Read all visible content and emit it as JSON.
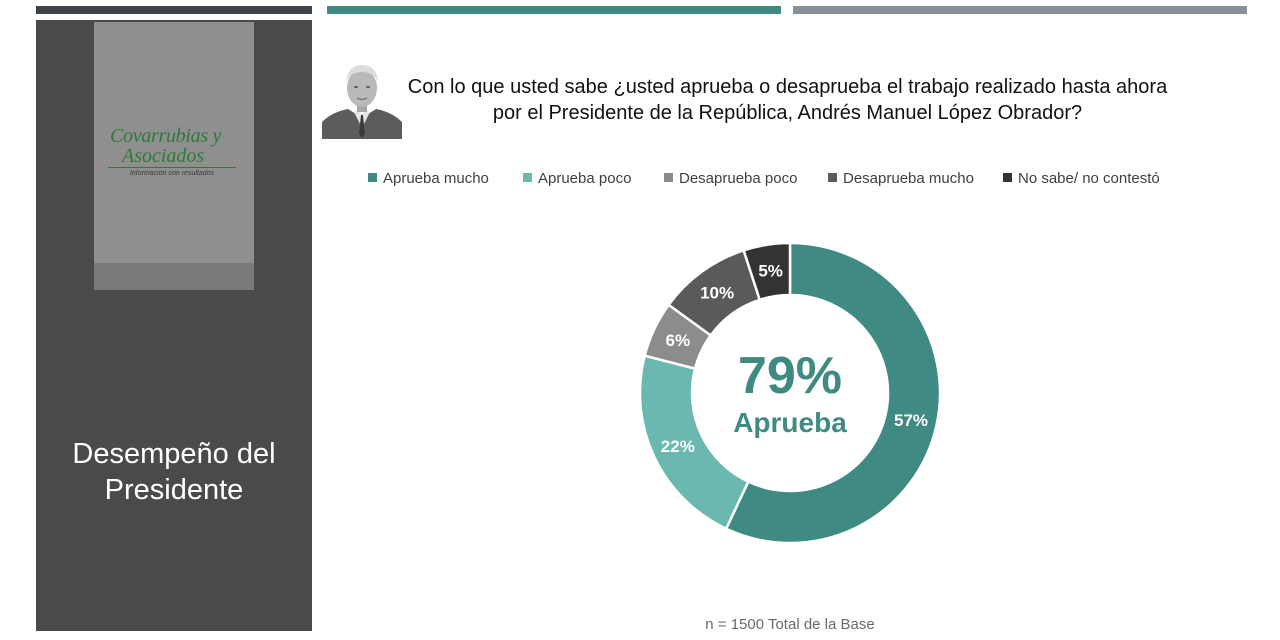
{
  "panel": {
    "title_line1": "Desempeño del",
    "title_line2": "Presidente",
    "logo_line1": "Covarrubias y",
    "logo_line2": "Asociados",
    "logo_tagline": "Información con resultados"
  },
  "question": {
    "line1": "Con lo que usted sabe ¿usted aprueba o desaprueba el trabajo realizado hasta ahora",
    "line2": "por el Presidente de la República, Andrés Manuel López Obrador?"
  },
  "legend": [
    {
      "label": "Aprueba mucho",
      "color": "#3f8a82"
    },
    {
      "label": "Aprueba poco",
      "color": "#6bb8b0"
    },
    {
      "label": "Desaprueba poco",
      "color": "#8c8c8c"
    },
    {
      "label": "Desaprueba mucho",
      "color": "#5a5a5a"
    },
    {
      "label": "No sabe/ no contestó",
      "color": "#333333"
    }
  ],
  "center": {
    "value": "79%",
    "label": "Aprueba"
  },
  "footnote": "n = 1500 Total de la Base",
  "chart_data": {
    "type": "pie",
    "subtype": "donut",
    "start": "top, clockwise",
    "categories": [
      "Aprueba mucho",
      "Aprueba poco",
      "Desaprueba poco",
      "Desaprueba mucho",
      "No sabe/ no contestó"
    ],
    "values": [
      57,
      22,
      6,
      10,
      5
    ],
    "labels": [
      "57%",
      "22%",
      "6%",
      "10%",
      "5%"
    ],
    "colors": [
      "#3f8a82",
      "#6bb8b0",
      "#8c8c8c",
      "#5a5a5a",
      "#333333"
    ],
    "legend_position": "top",
    "center_text": [
      "79%",
      "Aprueba"
    ]
  }
}
